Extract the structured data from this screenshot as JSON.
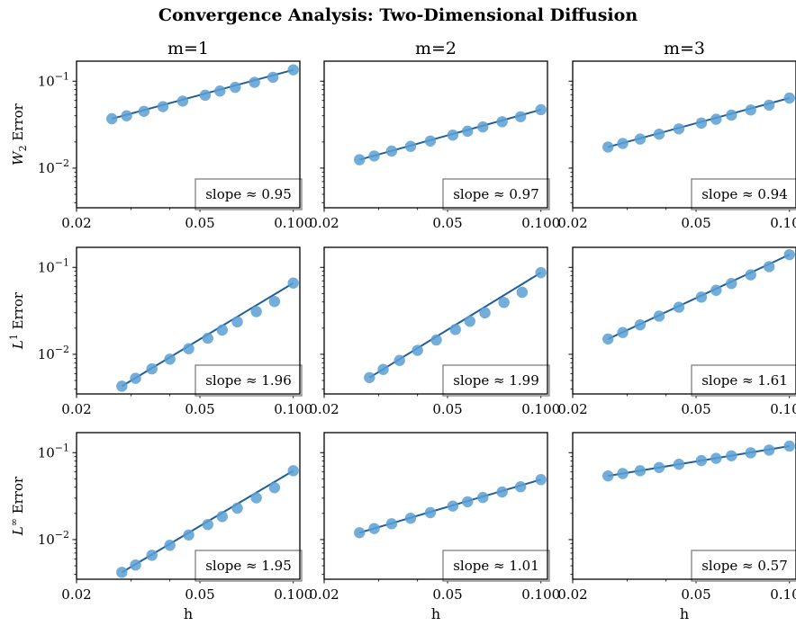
{
  "figure": {
    "title": "Convergence Analysis: Two-Dimensional Diffusion",
    "columns": [
      "m=1",
      "m=2",
      "m=3"
    ],
    "row_labels": [
      {
        "main": "W",
        "sub": "2",
        "sup": "",
        "rest": " Error"
      },
      {
        "main": "L",
        "sub": "",
        "sup": "1",
        "rest": " Error"
      },
      {
        "main": "L",
        "sub": "",
        "sup": "∞",
        "rest": " Error"
      }
    ],
    "xlabel": "h",
    "xticks": [
      "0.02",
      "0.05",
      "0.100"
    ],
    "yticks_major": [
      {
        "base": "10",
        "exp": "−1"
      },
      {
        "base": "10",
        "exp": "−2"
      }
    ]
  },
  "colors": {
    "marker": "#5b9fd3",
    "line": "#1f5f99"
  },
  "chart_data": [
    {
      "type": "scatter",
      "row": 0,
      "col": 0,
      "title": "m=1",
      "ylabel": "W2 Error",
      "xlabel": "",
      "xscale": "log",
      "yscale": "log",
      "xlim": [
        0.02,
        0.105
      ],
      "ylim": [
        0.0035,
        0.17
      ],
      "annotation": "slope ≈ 0.95",
      "slope": 0.95,
      "x": [
        0.026,
        0.029,
        0.033,
        0.038,
        0.044,
        0.052,
        0.058,
        0.065,
        0.075,
        0.086,
        0.1
      ],
      "y": [
        0.037,
        0.04,
        0.045,
        0.051,
        0.059,
        0.069,
        0.077,
        0.085,
        0.097,
        0.111,
        0.135
      ]
    },
    {
      "type": "scatter",
      "row": 0,
      "col": 1,
      "title": "m=2",
      "ylabel": "",
      "xlabel": "",
      "xscale": "log",
      "yscale": "log",
      "xlim": [
        0.02,
        0.105
      ],
      "ylim": [
        0.0035,
        0.17
      ],
      "annotation": "slope ≈ 0.97",
      "slope": 0.97,
      "x": [
        0.026,
        0.029,
        0.033,
        0.038,
        0.044,
        0.052,
        0.058,
        0.065,
        0.075,
        0.086,
        0.1
      ],
      "y": [
        0.0125,
        0.0138,
        0.0157,
        0.0178,
        0.0205,
        0.024,
        0.0266,
        0.0298,
        0.0342,
        0.039,
        0.047
      ]
    },
    {
      "type": "scatter",
      "row": 0,
      "col": 2,
      "title": "m=3",
      "ylabel": "",
      "xlabel": "",
      "xscale": "log",
      "yscale": "log",
      "xlim": [
        0.02,
        0.105
      ],
      "ylim": [
        0.0035,
        0.17
      ],
      "annotation": "slope ≈ 0.94",
      "slope": 0.94,
      "x": [
        0.026,
        0.029,
        0.033,
        0.038,
        0.044,
        0.052,
        0.058,
        0.065,
        0.075,
        0.086,
        0.1
      ],
      "y": [
        0.0175,
        0.0192,
        0.0216,
        0.0246,
        0.0283,
        0.033,
        0.0365,
        0.0407,
        0.0466,
        0.053,
        0.064
      ]
    },
    {
      "type": "scatter",
      "row": 1,
      "col": 0,
      "title": "",
      "ylabel": "L1 Error",
      "xlabel": "",
      "xscale": "log",
      "yscale": "log",
      "xlim": [
        0.02,
        0.105
      ],
      "ylim": [
        0.0035,
        0.17
      ],
      "annotation": "slope ≈ 1.96",
      "slope": 1.96,
      "x": [
        0.028,
        0.031,
        0.035,
        0.04,
        0.046,
        0.053,
        0.059,
        0.066,
        0.076,
        0.087,
        0.1
      ],
      "y": [
        0.0043,
        0.0053,
        0.0068,
        0.0088,
        0.0116,
        0.0153,
        0.019,
        0.0236,
        0.031,
        0.0405,
        0.066
      ]
    },
    {
      "type": "scatter",
      "row": 1,
      "col": 1,
      "title": "",
      "ylabel": "",
      "xlabel": "",
      "xscale": "log",
      "yscale": "log",
      "xlim": [
        0.02,
        0.105
      ],
      "ylim": [
        0.0035,
        0.17
      ],
      "annotation": "slope ≈ 1.99",
      "slope": 1.99,
      "x": [
        0.028,
        0.031,
        0.035,
        0.04,
        0.046,
        0.053,
        0.059,
        0.066,
        0.076,
        0.087,
        0.1
      ],
      "y": [
        0.0054,
        0.0067,
        0.0085,
        0.0111,
        0.0146,
        0.0193,
        0.024,
        0.03,
        0.0395,
        0.0517,
        0.087
      ]
    },
    {
      "type": "scatter",
      "row": 1,
      "col": 2,
      "title": "",
      "ylabel": "",
      "xlabel": "",
      "xscale": "log",
      "yscale": "log",
      "xlim": [
        0.02,
        0.105
      ],
      "ylim": [
        0.0035,
        0.17
      ],
      "annotation": "slope ≈ 1.61",
      "slope": 1.61,
      "x": [
        0.026,
        0.029,
        0.033,
        0.038,
        0.044,
        0.052,
        0.058,
        0.065,
        0.075,
        0.086,
        0.1
      ],
      "y": [
        0.015,
        0.0178,
        0.0218,
        0.0275,
        0.0348,
        0.0455,
        0.0545,
        0.0652,
        0.082,
        0.102,
        0.14
      ]
    },
    {
      "type": "scatter",
      "row": 2,
      "col": 0,
      "title": "",
      "ylabel": "L∞ Error",
      "xlabel": "h",
      "xscale": "log",
      "yscale": "log",
      "xlim": [
        0.02,
        0.105
      ],
      "ylim": [
        0.0035,
        0.17
      ],
      "annotation": "slope ≈ 1.95",
      "slope": 1.95,
      "x": [
        0.028,
        0.031,
        0.035,
        0.04,
        0.046,
        0.053,
        0.059,
        0.066,
        0.076,
        0.087,
        0.1
      ],
      "y": [
        0.0042,
        0.0051,
        0.0066,
        0.0086,
        0.0113,
        0.0149,
        0.0184,
        0.023,
        0.0302,
        0.0395,
        0.062
      ]
    },
    {
      "type": "scatter",
      "row": 2,
      "col": 1,
      "title": "",
      "ylabel": "",
      "xlabel": "h",
      "xscale": "log",
      "yscale": "log",
      "xlim": [
        0.02,
        0.105
      ],
      "ylim": [
        0.0035,
        0.17
      ],
      "annotation": "slope ≈ 1.01",
      "slope": 1.01,
      "x": [
        0.026,
        0.029,
        0.033,
        0.038,
        0.044,
        0.052,
        0.058,
        0.065,
        0.075,
        0.086,
        0.1
      ],
      "y": [
        0.012,
        0.0134,
        0.0152,
        0.0176,
        0.0204,
        0.0243,
        0.0272,
        0.0305,
        0.0353,
        0.0405,
        0.049
      ]
    },
    {
      "type": "scatter",
      "row": 2,
      "col": 2,
      "title": "",
      "ylabel": "",
      "xlabel": "h",
      "xscale": "log",
      "yscale": "log",
      "xlim": [
        0.02,
        0.105
      ],
      "ylim": [
        0.0035,
        0.17
      ],
      "annotation": "slope ≈ 0.57",
      "slope": 0.57,
      "x": [
        0.026,
        0.029,
        0.033,
        0.038,
        0.044,
        0.052,
        0.058,
        0.065,
        0.075,
        0.086,
        0.1
      ],
      "y": [
        0.054,
        0.0575,
        0.062,
        0.0675,
        0.0735,
        0.081,
        0.086,
        0.092,
        0.0995,
        0.107,
        0.119
      ]
    }
  ]
}
